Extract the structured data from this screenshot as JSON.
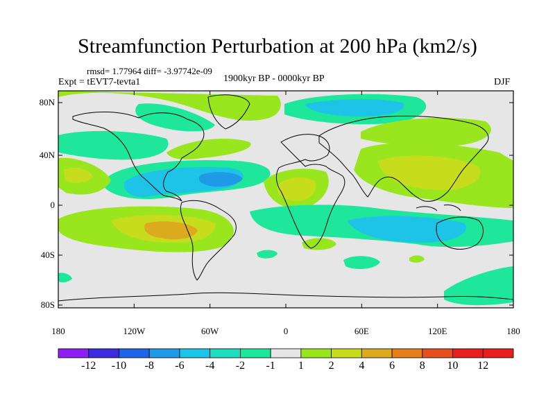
{
  "title": "Streamfunction Perturbation at 200 hPa (km2/s)",
  "stats": "rmsd= 1.77964 diff= -3.97742e-09",
  "experiment": "Expt = tEVT7-tevta1",
  "period": "1900kyr BP - 0000kyr BP",
  "season": "DJF",
  "lat_ticks": [
    "80N",
    "40N",
    "0",
    "40S",
    "80S"
  ],
  "lon_ticks": [
    "180",
    "120W",
    "60W",
    "0",
    "60E",
    "120E",
    "180"
  ],
  "colorbar": {
    "labels": [
      "-12",
      "-10",
      "-8",
      "-6",
      "-4",
      "-2",
      "-1",
      "1",
      "2",
      "4",
      "6",
      "8",
      "10",
      "12"
    ],
    "colors": [
      "#8c1ef0",
      "#3c2cdc",
      "#1e64e6",
      "#1e9ae6",
      "#1ec4e8",
      "#1edcc0",
      "#1ee69a",
      "#e6e6e6",
      "#9ae61e",
      "#c8dc1e",
      "#dcaa1e",
      "#e67e1e",
      "#e6501e",
      "#e61e1e",
      "#e61e1e"
    ]
  },
  "map_colors": {
    "background": "#e6e6e6",
    "neg_weak": "#1ee69a",
    "neg_mid": "#1edcc0",
    "neg_strong": "#1ec4e8",
    "neg_stronger": "#1e9ae6",
    "pos_weak": "#9ae61e",
    "pos_mid": "#c8dc1e",
    "pos_strong": "#dcaa1e",
    "pos_stronger": "#e67e1e"
  }
}
